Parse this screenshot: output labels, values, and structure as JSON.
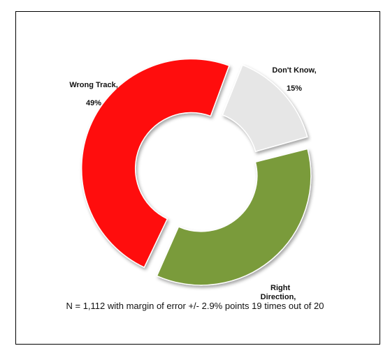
{
  "chart_data": {
    "type": "pie",
    "style": "doughnut",
    "slices": [
      {
        "label": "Don't Know,",
        "value_label": "15%",
        "value": 15,
        "color": "#e6e6e6"
      },
      {
        "label": "Right\nDirection,",
        "value_label": "",
        "value": 36,
        "color": "#7a9b3b"
      },
      {
        "label": "Wrong Track,",
        "value_label": "49%",
        "value": 49,
        "color": "#ff1111"
      }
    ],
    "footnote": "N = 1,112 with margin of error +/- 2.9% points 19 times out of 20",
    "legend": "none"
  }
}
